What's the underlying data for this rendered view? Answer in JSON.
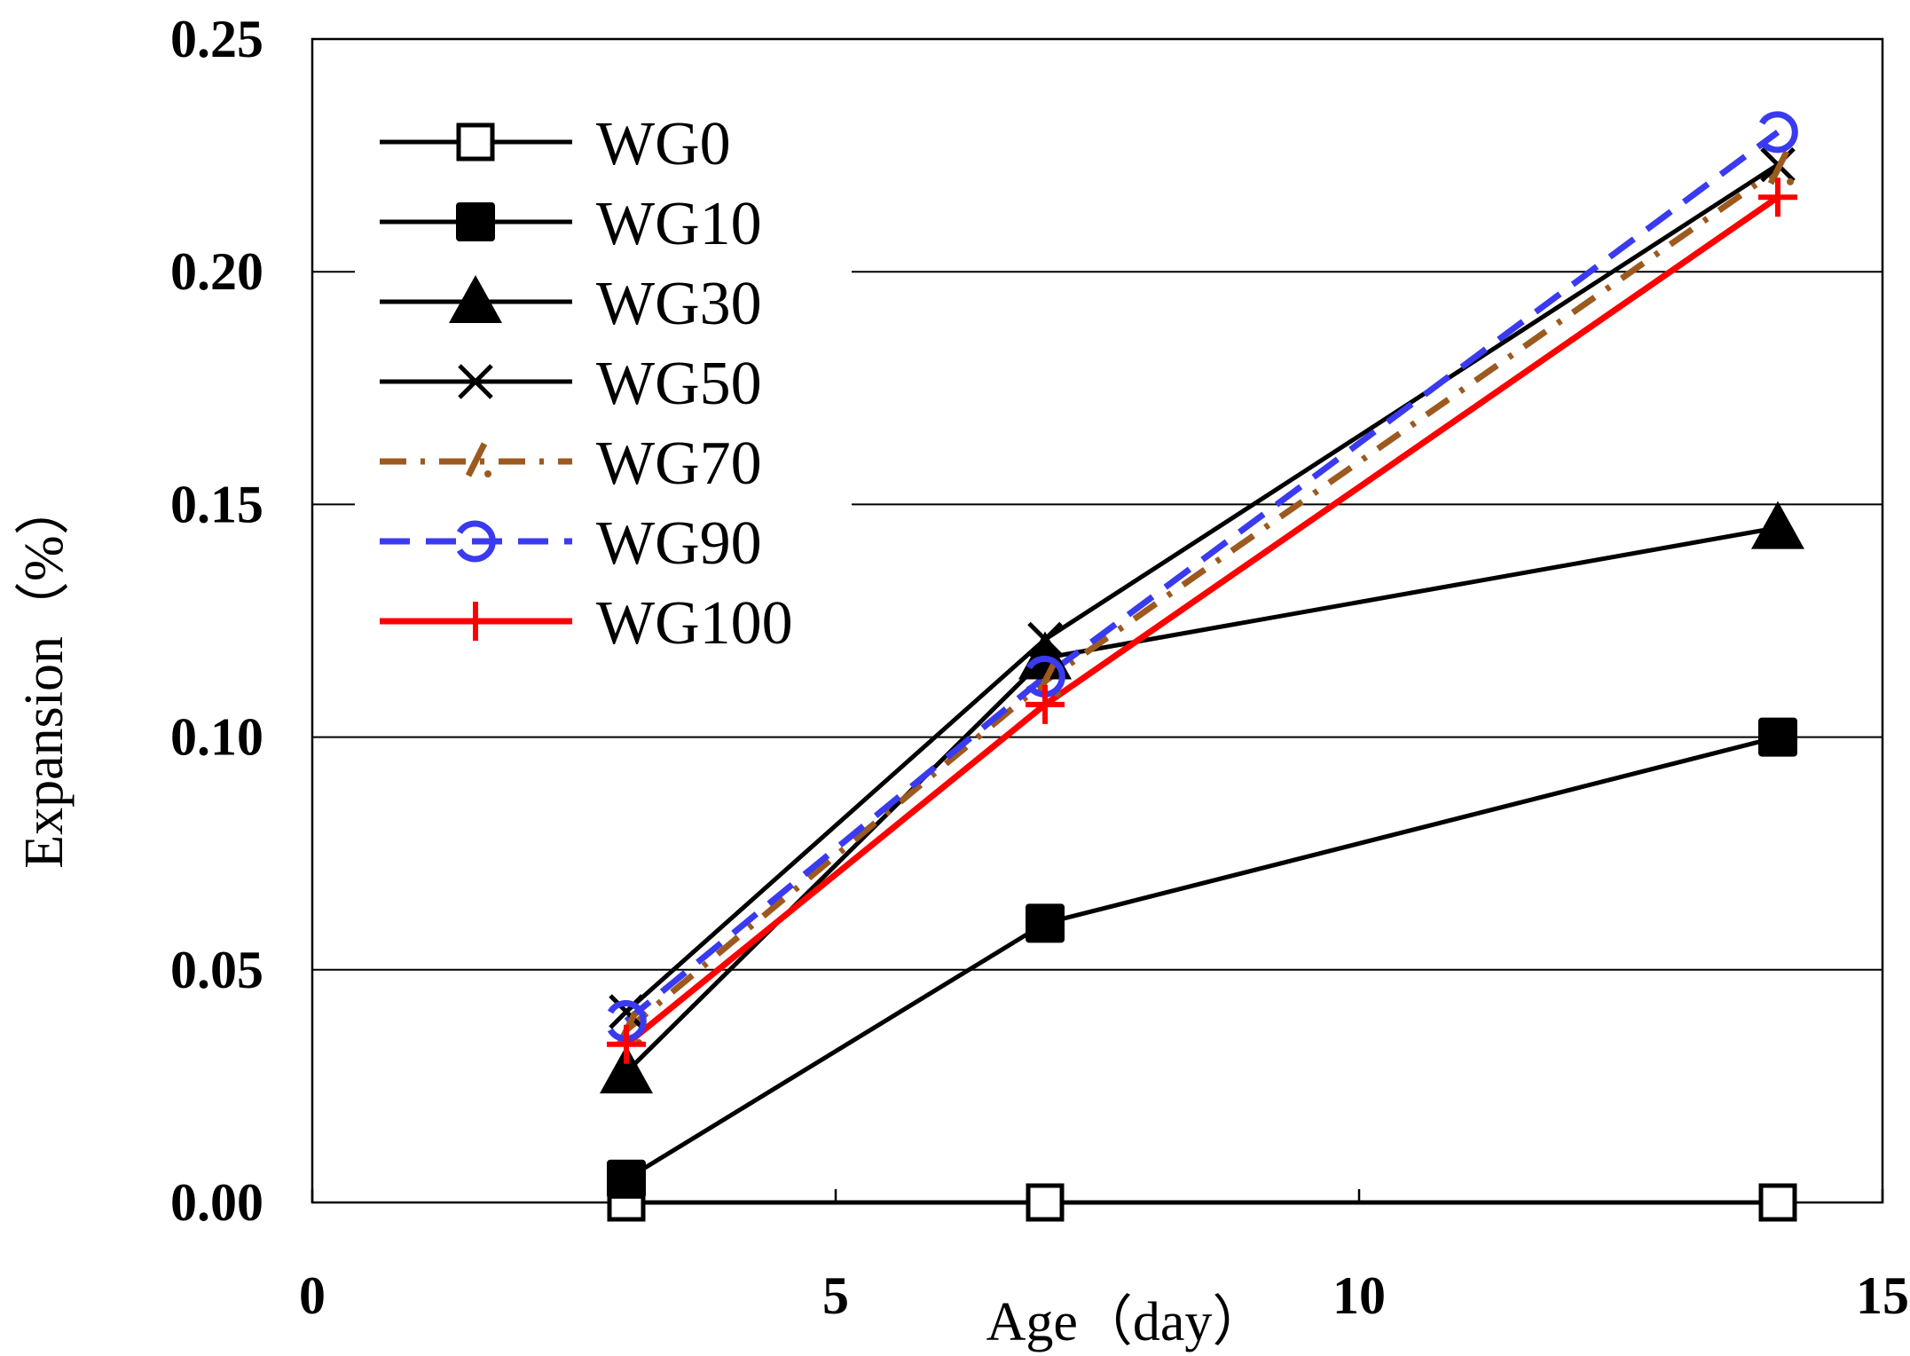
{
  "chart_data": {
    "type": "line",
    "title": "",
    "xlabel": "Age（day）",
    "ylabel": "Expansion（%）",
    "xlim": [
      0,
      15
    ],
    "ylim": [
      0,
      0.25
    ],
    "x_ticks": [
      0,
      5,
      10,
      15
    ],
    "x_tick_labels": [
      "0",
      "5",
      "10",
      "15"
    ],
    "y_ticks": [
      0,
      0.05,
      0.1,
      0.15,
      0.2,
      0.25
    ],
    "y_tick_labels": [
      "0.00",
      "0.05",
      "0.10",
      "0.15",
      "0.20",
      "0.25"
    ],
    "grid": "horizontal",
    "legend_position": "top-left",
    "x": [
      3,
      7,
      14
    ],
    "series": [
      {
        "name": "WG0",
        "values": [
          0.0,
          0.0,
          0.0
        ],
        "color": "#000000",
        "dash": "solid",
        "marker": "square-open"
      },
      {
        "name": "WG10",
        "values": [
          0.005,
          0.06,
          0.1
        ],
        "color": "#000000",
        "dash": "solid",
        "marker": "square-filled"
      },
      {
        "name": "WG30",
        "values": [
          0.028,
          0.117,
          0.145
        ],
        "color": "#000000",
        "dash": "solid",
        "marker": "triangle"
      },
      {
        "name": "WG50",
        "values": [
          0.041,
          0.121,
          0.223
        ],
        "color": "#000000",
        "dash": "solid",
        "marker": "x"
      },
      {
        "name": "WG70",
        "values": [
          0.037,
          0.112,
          0.222
        ],
        "color": "#9c5a1f",
        "dash": "dashdot",
        "marker": "slash"
      },
      {
        "name": "WG90",
        "values": [
          0.039,
          0.113,
          0.23
        ],
        "color": "#3a3af0",
        "dash": "dashed",
        "marker": "circle-open-half"
      },
      {
        "name": "WG100",
        "values": [
          0.034,
          0.107,
          0.216
        ],
        "color": "#ff0000",
        "dash": "solid",
        "marker": "plus"
      }
    ]
  }
}
